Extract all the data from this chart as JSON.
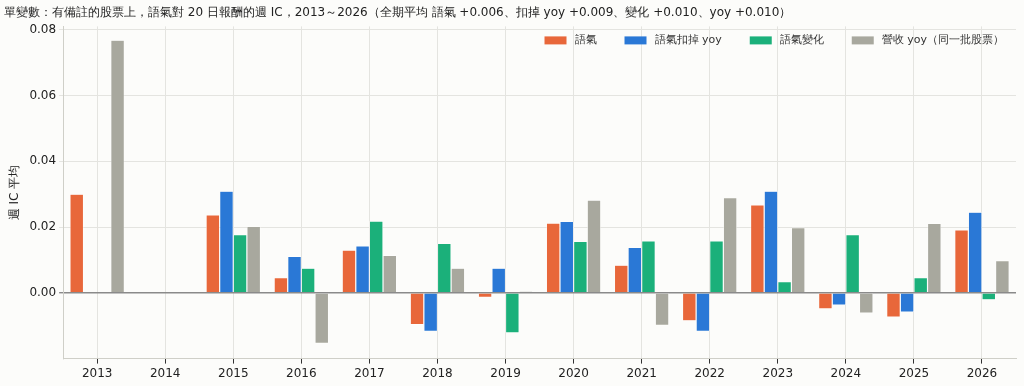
{
  "chart_data": {
    "type": "bar",
    "title": "單變數：有備註的股票上，語氣對 20 日報酬的週 IC，2013～2026（全期平均 語氣 +0.006、扣掉 yoy +0.009、變化 +0.010、yoy +0.010）",
    "ylabel": "週 IC 平均",
    "categories": [
      "2013",
      "2014",
      "2015",
      "2016",
      "2017",
      "2018",
      "2019",
      "2020",
      "2021",
      "2022",
      "2023",
      "2024",
      "2025",
      "2026"
    ],
    "series": [
      {
        "name": "語氣",
        "color": "#e8673a",
        "values": [
          0.03,
          null,
          0.0237,
          0.0046,
          0.013,
          -0.0097,
          -0.0014,
          0.0212,
          0.0084,
          -0.0085,
          0.0267,
          -0.0049,
          -0.0074,
          0.0191
        ]
      },
      {
        "name": "語氣扣掉 yoy",
        "color": "#2a78d6",
        "values": [
          null,
          null,
          0.0309,
          0.0111,
          0.0143,
          -0.0117,
          0.0075,
          0.0217,
          0.0138,
          -0.0117,
          0.0309,
          -0.0037,
          -0.0059,
          0.0245
        ]
      },
      {
        "name": "語氣變化",
        "color": "#1bb07a",
        "values": [
          null,
          null,
          0.0177,
          0.0075,
          0.0218,
          0.015,
          -0.0122,
          0.0156,
          0.0158,
          0.0158,
          0.0034,
          0.0177,
          0.0046,
          -0.0021
        ]
      },
      {
        "name": "營收 yoy（同一批股票）",
        "color": "#a8a89e",
        "values": [
          0.0768,
          null,
          0.0202,
          -0.0154,
          0.0114,
          0.0075,
          0.0005,
          0.0282,
          -0.0099,
          0.0289,
          0.0198,
          -0.0062,
          0.0211,
          0.0098
        ]
      }
    ],
    "ylim": [
      -0.02,
      0.081
    ],
    "yticks": [
      {
        "value": 0,
        "label": "0.00"
      },
      0.02,
      0.04,
      0.06,
      0.08
    ],
    "grid": true,
    "legend": "top right"
  }
}
